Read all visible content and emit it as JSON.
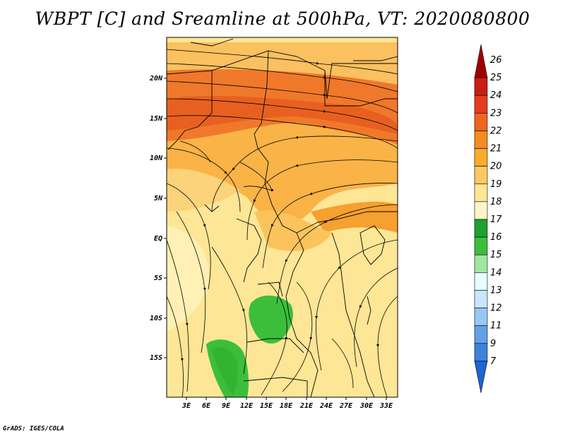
{
  "title": "WBPT [C] and Sreamline at 500hPa, VT: 2020080800",
  "credit": "GrADS: IGES/COLA",
  "map": {
    "lat_labels": [
      "20N",
      "15N",
      "10N",
      "5N",
      "EQ",
      "5S",
      "10S",
      "15S"
    ],
    "lon_labels": [
      "3E",
      "6E",
      "9E",
      "12E",
      "15E",
      "18E",
      "21E",
      "24E",
      "27E",
      "30E",
      "33E"
    ]
  },
  "colorbar": {
    "labels": [
      "26",
      "25",
      "24",
      "23",
      "22",
      "21",
      "20",
      "19",
      "18",
      "17",
      "16",
      "15",
      "14",
      "13",
      "12",
      "11",
      "9",
      "7"
    ],
    "colors": [
      "#a00000",
      "#c81e14",
      "#e63c1e",
      "#f0641e",
      "#f58c1e",
      "#faaa2d",
      "#fcc864",
      "#fde696",
      "#fff5c8",
      "#1ea032",
      "#3cbe3c",
      "#a0e6a0",
      "#e6ffff",
      "#c8e6ff",
      "#96c8f5",
      "#64a0e6",
      "#3c82dc",
      "#1e64d2"
    ]
  }
}
